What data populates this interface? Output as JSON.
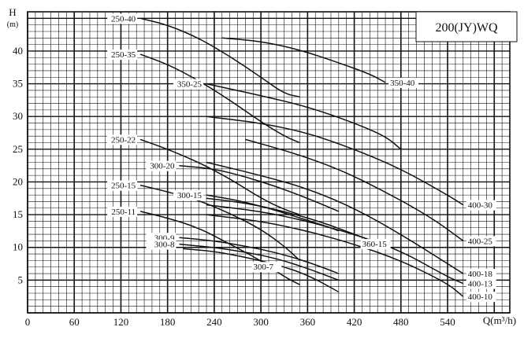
{
  "chart_data": {
    "type": "line",
    "title": "200(JY)WQ",
    "xlabel": "Q(m³/h)",
    "ylabel": "H",
    "ylabel_unit": "(m)",
    "xlim": [
      0,
      620
    ],
    "ylim": [
      0,
      46
    ],
    "xticks": [
      0,
      60,
      120,
      180,
      240,
      300,
      360,
      420,
      480,
      540
    ],
    "yticks": [
      5,
      10,
      15,
      20,
      25,
      30,
      35,
      40
    ],
    "grid": true,
    "series": [
      {
        "name": "250-40",
        "x": [
          145,
          180,
          220,
          260,
          300,
          330,
          350
        ],
        "y": [
          45,
          44,
          42,
          39.2,
          36,
          33.5,
          33
        ]
      },
      {
        "name": "250-35",
        "x": [
          145,
          180,
          220,
          260,
          300,
          330,
          350
        ],
        "y": [
          39.5,
          38,
          35.5,
          32.5,
          29.2,
          27,
          26
        ]
      },
      {
        "name": "350-40",
        "x": [
          250,
          300,
          350,
          400,
          440,
          460
        ],
        "y": [
          42,
          41.5,
          40.2,
          38.2,
          36.5,
          35.2
        ]
      },
      {
        "name": "350-25",
        "x": [
          230,
          300,
          360,
          420,
          460,
          480
        ],
        "y": [
          35,
          33.2,
          31.5,
          29,
          27,
          25
        ]
      },
      {
        "name": "400-30",
        "x": [
          230,
          300,
          360,
          420,
          480,
          540,
          560
        ],
        "y": [
          30,
          29,
          27.5,
          25,
          22,
          18,
          16.5
        ]
      },
      {
        "name": "400-25",
        "x": [
          280,
          340,
          400,
          460,
          520,
          560
        ],
        "y": [
          26.5,
          24.5,
          22,
          18.5,
          14.5,
          11
        ]
      },
      {
        "name": "250-22",
        "x": [
          145,
          180,
          220,
          260,
          300,
          330,
          350
        ],
        "y": [
          26.5,
          25,
          23,
          20.5,
          17.5,
          15.8,
          15
        ]
      },
      {
        "name": "300-20",
        "x": [
          195,
          240,
          280,
          320,
          360,
          400
        ],
        "y": [
          22.5,
          22,
          20.8,
          19.3,
          17.5,
          15.5
        ]
      },
      {
        "name": "400-18",
        "x": [
          230,
          300,
          360,
          420,
          480,
          540,
          560
        ],
        "y": [
          23,
          21,
          19,
          16,
          12,
          7.5,
          6
        ]
      },
      {
        "name": "300-15",
        "x": [
          230,
          270,
          310,
          350,
          390,
          400
        ],
        "y": [
          18,
          17.2,
          16,
          14.5,
          13,
          12.5
        ]
      },
      {
        "name": "360-15",
        "x": [
          230,
          280,
          330,
          380,
          420,
          450
        ],
        "y": [
          17.5,
          16.8,
          15.5,
          13.8,
          12,
          10.7
        ]
      },
      {
        "name": "400-13",
        "x": [
          230,
          300,
          360,
          420,
          480,
          540,
          560
        ],
        "y": [
          16.5,
          15.5,
          14,
          12,
          9.5,
          5.5,
          4.5
        ]
      },
      {
        "name": "250-15",
        "x": [
          145,
          180,
          220,
          260,
          300,
          330,
          350
        ],
        "y": [
          19.5,
          18.5,
          17.2,
          15.2,
          12.8,
          10.2,
          8
        ]
      },
      {
        "name": "400-10",
        "x": [
          230,
          300,
          360,
          420,
          480,
          540,
          560
        ],
        "y": [
          15,
          14,
          12.5,
          10.5,
          8,
          4.5,
          2.5
        ]
      },
      {
        "name": "250-11",
        "x": [
          145,
          180,
          220,
          260,
          300,
          330,
          350
        ],
        "y": [
          15.5,
          14.5,
          13,
          10.5,
          8,
          5.5,
          4.3
        ]
      },
      {
        "name": "300-9",
        "x": [
          195,
          240,
          280,
          320,
          360,
          400
        ],
        "y": [
          11.5,
          11,
          10.2,
          9.2,
          7.8,
          6
        ]
      },
      {
        "name": "300-8",
        "x": [
          195,
          240,
          280,
          320,
          360,
          400
        ],
        "y": [
          10.5,
          10,
          9.3,
          8.3,
          6.8,
          5
        ]
      },
      {
        "name": "300-7",
        "x": [
          200,
          240,
          280,
          320,
          360,
          400
        ],
        "y": [
          9.8,
          9.4,
          8.5,
          7.4,
          5.8,
          3.2
        ]
      }
    ]
  }
}
